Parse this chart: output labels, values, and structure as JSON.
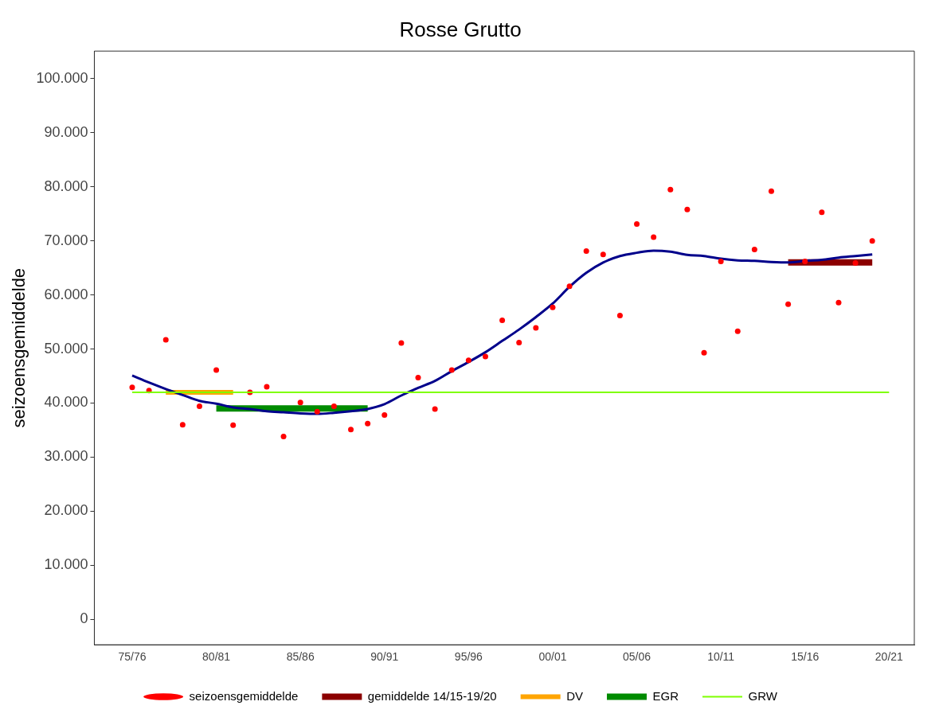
{
  "chart_data": {
    "type": "scatter",
    "title": "Rosse Grutto",
    "ylabel": "seizoensgemiddelde",
    "categories": [
      "75/76",
      null,
      null,
      null,
      null,
      "80/81",
      null,
      null,
      null,
      null,
      "85/86",
      null,
      null,
      null,
      null,
      "90/91",
      null,
      null,
      null,
      null,
      "95/96",
      null,
      null,
      null,
      null,
      "00/01",
      null,
      null,
      null,
      null,
      "05/06",
      null,
      null,
      null,
      null,
      "10/11",
      null,
      null,
      null,
      null,
      "15/16",
      null,
      null,
      null,
      null,
      "20/21"
    ],
    "series": [
      {
        "name": "seizoensgemiddelde",
        "color": "#ff0000",
        "marker": "circle",
        "values": [
          42900,
          42300,
          51700,
          36000,
          39400,
          46100,
          35900,
          42000,
          43000,
          33800,
          40100,
          38400,
          39400,
          35100,
          36200,
          37800,
          51100,
          44700,
          38900,
          46100,
          47900,
          48600,
          55300,
          51200,
          53900,
          57700,
          61600,
          68100,
          67500,
          56200,
          73100,
          70700,
          79500,
          75800,
          49300,
          66200,
          53300,
          68400,
          79200,
          58300,
          66200,
          75300,
          58600,
          65900,
          70000,
          null
        ]
      },
      {
        "type": "line",
        "color": "#00008b",
        "marker": "none",
        "values": [
          45100,
          43800,
          42600,
          41500,
          40400,
          39900,
          39200,
          38900,
          38500,
          38300,
          38100,
          38000,
          38200,
          38500,
          38900,
          39800,
          41400,
          42800,
          44100,
          45900,
          47600,
          49400,
          51500,
          53600,
          55900,
          58400,
          61500,
          64100,
          66000,
          67200,
          67800,
          68200,
          68000,
          67400,
          67200,
          66700,
          66400,
          66300,
          66100,
          66000,
          66300,
          66500,
          66900,
          67200,
          67500,
          null
        ]
      },
      {
        "name": "gemiddelde 14/15-19/20",
        "type": "line",
        "color": "#8b0000",
        "marker": "none",
        "values": [
          null,
          null,
          null,
          null,
          null,
          null,
          null,
          null,
          null,
          null,
          null,
          null,
          null,
          null,
          null,
          null,
          null,
          null,
          null,
          null,
          null,
          null,
          null,
          null,
          null,
          null,
          null,
          null,
          null,
          null,
          null,
          null,
          null,
          null,
          null,
          null,
          null,
          null,
          null,
          66000,
          66000,
          66000,
          66000,
          66000,
          66000,
          null
        ]
      },
      {
        "name": "DV",
        "type": "line",
        "color": "#ffa500",
        "marker": "none",
        "values": [
          null,
          null,
          42000,
          42000,
          42000,
          42000,
          42000,
          null,
          null,
          null,
          null,
          null,
          null,
          null,
          null,
          null,
          null,
          null,
          null,
          null,
          null,
          null,
          null,
          null,
          null,
          null,
          null,
          null,
          null,
          null,
          null,
          null,
          null,
          null,
          null,
          null,
          null,
          null,
          null,
          null,
          null,
          null,
          null,
          null,
          null,
          null
        ]
      },
      {
        "name": "EGR",
        "type": "line",
        "color": "#008b00",
        "marker": "none",
        "values": [
          null,
          null,
          null,
          null,
          null,
          39000,
          39000,
          39000,
          39000,
          39000,
          39000,
          39000,
          39000,
          39000,
          39000,
          null,
          null,
          null,
          null,
          null,
          null,
          null,
          null,
          null,
          null,
          null,
          null,
          null,
          null,
          null,
          null,
          null,
          null,
          null,
          null,
          null,
          null,
          null,
          null,
          null,
          null,
          null,
          null,
          null,
          null,
          null
        ]
      },
      {
        "name": "GRW",
        "type": "line",
        "color": "#7fff00",
        "marker": "none",
        "values": [
          42000,
          42000,
          42000,
          42000,
          42000,
          42000,
          42000,
          42000,
          42000,
          42000,
          42000,
          42000,
          42000,
          42000,
          42000,
          42000,
          42000,
          42000,
          42000,
          42000,
          42000,
          42000,
          42000,
          42000,
          42000,
          42000,
          42000,
          42000,
          42000,
          42000,
          42000,
          42000,
          42000,
          42000,
          42000,
          42000,
          42000,
          42000,
          42000,
          42000,
          42000,
          42000,
          42000,
          42000,
          42000,
          42000
        ]
      }
    ],
    "ylim": [
      -4700,
      105100
    ],
    "yticks": [
      {
        "value": 0,
        "label": "0"
      },
      {
        "value": 10000,
        "label": "10.000"
      },
      {
        "value": 20000,
        "label": "20.000"
      },
      {
        "value": 30000,
        "label": "30.000"
      },
      {
        "value": 40000,
        "label": "40.000"
      },
      {
        "value": 50000,
        "label": "50.000"
      },
      {
        "value": 60000,
        "label": "60.000"
      },
      {
        "value": 70000,
        "label": "70.000"
      },
      {
        "value": 80000,
        "label": "80.000"
      },
      {
        "value": 90000,
        "label": "90.000"
      },
      {
        "value": 100000,
        "label": "100.000"
      }
    ],
    "grid": false,
    "legend": "bottom"
  }
}
